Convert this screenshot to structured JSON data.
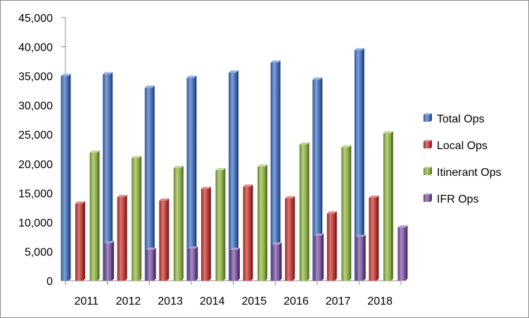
{
  "chart_data": {
    "type": "bar",
    "title": "",
    "xlabel": "",
    "ylabel": "",
    "categories": [
      "2011",
      "2012",
      "2013",
      "2014",
      "2015",
      "2016",
      "2017",
      "2018"
    ],
    "ylim": [
      0,
      45000
    ],
    "yticks": [
      "0",
      "5,000",
      "10,000",
      "15,000",
      "20,000",
      "25,000",
      "30,000",
      "35,000",
      "40,000",
      "45,000"
    ],
    "ytick_values": [
      0,
      5000,
      10000,
      15000,
      20000,
      25000,
      30000,
      35000,
      40000,
      45000
    ],
    "grid": false,
    "legend_position": "right",
    "series": [
      {
        "name": "Total Ops",
        "color": "#3b6fc4",
        "values": [
          35000,
          35300,
          33000,
          34700,
          35600,
          37300,
          34400,
          39400
        ]
      },
      {
        "name": "Local Ops",
        "color": "#c8302b",
        "values": [
          13200,
          14300,
          13700,
          15700,
          16100,
          14100,
          11500,
          14200
        ]
      },
      {
        "name": "Itinerant Ops",
        "color": "#8fb73e",
        "values": [
          21900,
          21000,
          19300,
          18900,
          19500,
          23300,
          22800,
          25200
        ]
      },
      {
        "name": "IFR Ops",
        "color": "#7b4fa3",
        "values": [
          6400,
          5300,
          5500,
          5300,
          6200,
          7700,
          7500,
          9100
        ]
      }
    ]
  }
}
